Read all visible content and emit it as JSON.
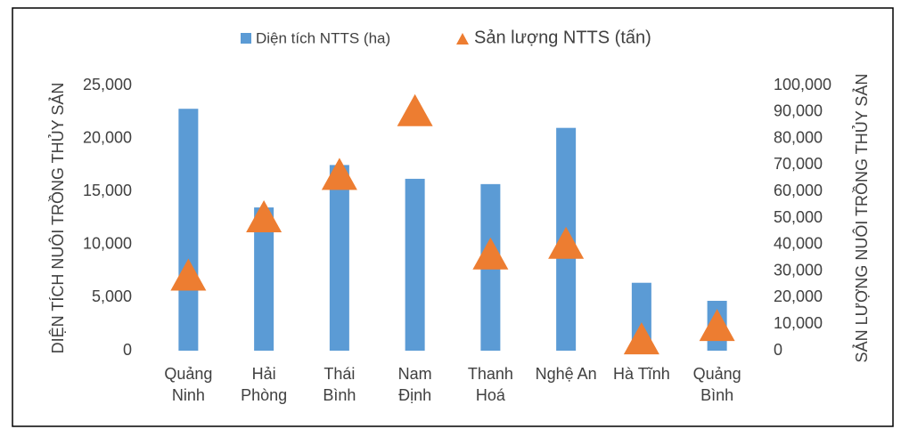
{
  "chart_data": {
    "type": "bar_triangle",
    "categories": [
      "Quảng\nNinh",
      "Hải\nPhòng",
      "Thái\nBình",
      "Nam\nĐịnh",
      "Thanh\nHoá",
      "Nghệ An",
      "Hà Tĩnh",
      "Quảng\nBình"
    ],
    "series": [
      {
        "name": "Diện tích NTTS (ha)",
        "color": "#5b9bd5",
        "values": [
          22800,
          13500,
          17500,
          16200,
          15700,
          21000,
          6400,
          4700
        ]
      },
      {
        "name": "Sản lượng NTTS (tấn)",
        "color": "#ed7d31",
        "axis": "y2",
        "values": [
          28000,
          50000,
          66000,
          90000,
          36000,
          40000,
          4000,
          9000
        ]
      }
    ],
    "ylabel": "DIỆN TÍCH NUÔI TRỒNG THỦY SẢN",
    "y2label": "SẢN LƯỢNG NUÔI TRỒNG THỦY SẢN",
    "ylim": [
      0,
      25000
    ],
    "yticks": [
      0,
      {
        "value": 5000,
        "label": "5,000"
      },
      {
        "value": 10000,
        "label": "10,000"
      },
      {
        "value": 15000,
        "label": "15,000"
      },
      {
        "value": 20000,
        "label": "20,000"
      },
      {
        "value": 25000,
        "label": "25,000"
      }
    ],
    "y2lim": [
      0,
      100000
    ],
    "y2ticks": [
      0,
      {
        "value": 10000,
        "label": "10,000"
      },
      {
        "value": 20000,
        "label": "20,000"
      },
      {
        "value": 30000,
        "label": "30,000"
      },
      {
        "value": 40000,
        "label": "40,000"
      },
      {
        "value": 50000,
        "label": "50,000"
      },
      {
        "value": 60000,
        "label": "60,000"
      },
      {
        "value": 70000,
        "label": "70,000"
      },
      {
        "value": 80000,
        "label": "80,000"
      },
      {
        "value": 90000,
        "label": "90,000"
      },
      {
        "value": 100000,
        "label": "100,000"
      }
    ],
    "legend": "top",
    "grid": false
  }
}
